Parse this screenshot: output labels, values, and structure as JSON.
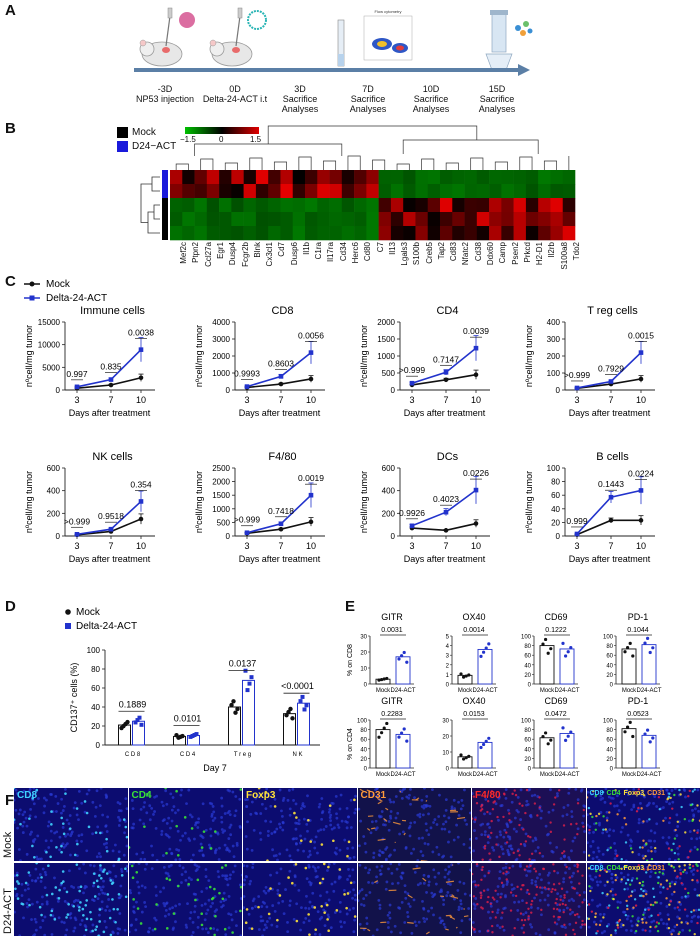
{
  "panels": {
    "A": "A",
    "B": "B",
    "C": "C",
    "D": "D",
    "E": "E",
    "F": "F"
  },
  "timeline": {
    "points": [
      {
        "day": "-3D",
        "event": "NP53 injection"
      },
      {
        "day": "0D",
        "event": "Delta-24-ACT i.t"
      },
      {
        "day": "3D",
        "event": "Sacrifice Analyses"
      },
      {
        "day": "7D",
        "event": "Sacrifice Analyses"
      },
      {
        "day": "10D",
        "event": "Sacrifice Analyses"
      },
      {
        "day": "15D",
        "event": "Sacrifice Analyses"
      }
    ],
    "flow_title": "Flow cytometry"
  },
  "heatmap": {
    "legend": [
      {
        "name": "Mock",
        "color": "#000000"
      },
      {
        "name": "D24−ACT",
        "color": "#1a1adb"
      }
    ],
    "scale": {
      "min": "−1.5",
      "mid": "0",
      "max": "1.5"
    },
    "genes": [
      "Mef2c",
      "Ptpn2",
      "Ccl27a",
      "Egr1",
      "Dusp4",
      "Fcgr2b",
      "Blnk",
      "Cx3cl1",
      "Cd7",
      "Dusp6",
      "Il1b",
      "C1ra",
      "Il17ra",
      "Cd34",
      "Herc6",
      "Cd80",
      "C7",
      "Il13",
      "Lgals3",
      "S100b",
      "Creb5",
      "Tap2",
      "Cd83",
      "Nfatc2",
      "Cd38",
      "Ddx60",
      "Camp",
      "Psen2",
      "Prkcd",
      "H2-D1",
      "Il2rb",
      "S100a8",
      "Tdo2"
    ],
    "row_groups": [
      "D24-ACT",
      "D24-ACT",
      "Mock",
      "Mock",
      "Mock"
    ]
  },
  "section_c": {
    "legend": [
      {
        "name": "Mock",
        "color": "#111111"
      },
      {
        "name": "Delta-24-ACT",
        "color": "#2233cc"
      }
    ],
    "xlabel": "Days after treatment",
    "ylabel": "nºcell/mg tumor",
    "x": [
      "3",
      "7",
      "10"
    ]
  },
  "chart_data": [
    {
      "type": "line",
      "title": "Immune cells",
      "x": [
        3,
        7,
        10
      ],
      "ylim": [
        0,
        15000
      ],
      "yticks": [
        "0",
        "5000",
        "10000",
        "15000"
      ],
      "series": [
        {
          "name": "Mock",
          "values": [
            400,
            1100,
            2700
          ]
        },
        {
          "name": "Delta-24-ACT",
          "values": [
            700,
            2300,
            8900
          ]
        }
      ],
      "pvalues": [
        "0.997",
        "0.835",
        "0.0038"
      ]
    },
    {
      "type": "line",
      "title": "CD8",
      "x": [
        3,
        7,
        10
      ],
      "ylim": [
        0,
        4000
      ],
      "yticks": [
        "0",
        "1000",
        "2000",
        "3000",
        "4000"
      ],
      "series": [
        {
          "name": "Mock",
          "values": [
            150,
            350,
            650
          ]
        },
        {
          "name": "Delta-24-ACT",
          "values": [
            200,
            800,
            2200
          ]
        }
      ],
      "pvalues": [
        "0.9993",
        "0.8603",
        "0.0056"
      ]
    },
    {
      "type": "line",
      "title": "CD4",
      "x": [
        3,
        7,
        10
      ],
      "ylim": [
        0,
        2000
      ],
      "yticks": [
        "0",
        "500",
        "1000",
        "1500",
        "2000"
      ],
      "series": [
        {
          "name": "Mock",
          "values": [
            150,
            300,
            450
          ]
        },
        {
          "name": "Delta-24-ACT",
          "values": [
            200,
            520,
            1230
          ]
        }
      ],
      "pvalues": [
        ">0.999",
        "0.7147",
        "0.0039"
      ]
    },
    {
      "type": "line",
      "title": "T reg cells",
      "x": [
        3,
        7,
        10
      ],
      "ylim": [
        0,
        400
      ],
      "yticks": [
        "0",
        "100",
        "200",
        "300",
        "400"
      ],
      "series": [
        {
          "name": "Mock",
          "values": [
            10,
            35,
            65
          ]
        },
        {
          "name": "Delta-24-ACT",
          "values": [
            12,
            50,
            220
          ]
        }
      ],
      "pvalues": [
        ">0.999",
        "0.7929",
        "0.0015"
      ]
    },
    {
      "type": "line",
      "title": "NK cells",
      "x": [
        3,
        7,
        10
      ],
      "ylim": [
        0,
        600
      ],
      "yticks": [
        "0",
        "200",
        "400",
        "600"
      ],
      "series": [
        {
          "name": "Mock",
          "values": [
            10,
            40,
            150
          ]
        },
        {
          "name": "Delta-24-ACT",
          "values": [
            15,
            60,
            305
          ]
        }
      ],
      "pvalues": [
        ">0.999",
        "0.9518",
        "0.354"
      ]
    },
    {
      "type": "line",
      "title": "F4/80",
      "x": [
        3,
        7,
        10
      ],
      "ylim": [
        0,
        2500
      ],
      "yticks": [
        "0",
        "500",
        "1000",
        "1500",
        "2000",
        "2500"
      ],
      "series": [
        {
          "name": "Mock",
          "values": [
            100,
            250,
            520
          ]
        },
        {
          "name": "Delta-24-ACT",
          "values": [
            120,
            450,
            1500
          ]
        }
      ],
      "pvalues": [
        ">0.999",
        "0.7418",
        "0.0019"
      ]
    },
    {
      "type": "line",
      "title": "DCs",
      "x": [
        3,
        7,
        10
      ],
      "ylim": [
        0,
        600
      ],
      "yticks": [
        "0",
        "200",
        "400",
        "600"
      ],
      "series": [
        {
          "name": "Mock",
          "values": [
            70,
            50,
            110
          ]
        },
        {
          "name": "Delta-24-ACT",
          "values": [
            90,
            210,
            405
          ]
        }
      ],
      "pvalues": [
        "0.9926",
        "0.4023",
        "0.0226"
      ]
    },
    {
      "type": "line",
      "title": "B cells",
      "x": [
        3,
        7,
        10
      ],
      "ylim": [
        0,
        100
      ],
      "yticks": [
        "0",
        "20",
        "40",
        "60",
        "80",
        "100"
      ],
      "series": [
        {
          "name": "Mock",
          "values": [
            2,
            23,
            23
          ]
        },
        {
          "name": "Delta-24-ACT",
          "values": [
            3,
            57,
            67
          ]
        }
      ],
      "pvalues": [
        "0.999",
        "0.1443",
        "0.0224"
      ]
    },
    {
      "type": "bar",
      "title": "",
      "ylabel": "CD137⁺ cells (%)",
      "xlabel": "Day 7",
      "categories": [
        "C D 8",
        "C D 4",
        "T r e g",
        "N K"
      ],
      "ylim": [
        0,
        100
      ],
      "yticks": [
        "0",
        "20",
        "40",
        "60",
        "80",
        "100"
      ],
      "series": [
        {
          "name": "Mock",
          "values": [
            21,
            9,
            40,
            33
          ]
        },
        {
          "name": "Delta-24-ACT",
          "values": [
            25,
            10,
            68,
            44
          ]
        }
      ],
      "pvalues": [
        "0.1889",
        "0.0101",
        "0.0137",
        "<0.0001"
      ]
    },
    {
      "type": "bar",
      "title": "GITR",
      "ylabel": "% on CD8",
      "categories": [
        "Mock",
        "D24-ACT"
      ],
      "ylim": [
        0,
        30
      ],
      "yticks": [
        "0",
        "10",
        "20",
        "30"
      ],
      "values": [
        3,
        17
      ],
      "pvalue": "0.0031"
    },
    {
      "type": "bar",
      "title": "OX40",
      "categories": [
        "Mock",
        "D24-ACT"
      ],
      "ylim": [
        0,
        5
      ],
      "yticks": [
        "0",
        "1",
        "2",
        "3",
        "4",
        "5"
      ],
      "values": [
        0.9,
        3.6
      ],
      "pvalue": "0.0014"
    },
    {
      "type": "bar",
      "title": "CD69",
      "categories": [
        "Mock",
        "D24-ACT"
      ],
      "ylim": [
        0,
        100
      ],
      "yticks": [
        "0",
        "20",
        "40",
        "60",
        "80",
        "100"
      ],
      "values": [
        80,
        73
      ],
      "pvalue": "0.1222"
    },
    {
      "type": "bar",
      "title": "PD-1",
      "categories": [
        "Mock",
        "D24-ACT"
      ],
      "ylim": [
        0,
        100
      ],
      "yticks": [
        "0",
        "20",
        "40",
        "60",
        "80",
        "100"
      ],
      "values": [
        73,
        82
      ],
      "pvalue": "0.1044"
    },
    {
      "type": "bar",
      "title": "GITR",
      "ylabel": "% on CD4",
      "categories": [
        "Mock",
        "D24-ACT"
      ],
      "ylim": [
        0,
        100
      ],
      "yticks": [
        "0",
        "20",
        "40",
        "60",
        "80",
        "100"
      ],
      "values": [
        80,
        70
      ],
      "pvalue": "0.2283"
    },
    {
      "type": "bar",
      "title": "OX40",
      "categories": [
        "Mock",
        "D24-ACT"
      ],
      "ylim": [
        0,
        30
      ],
      "yticks": [
        "0",
        "10",
        "20",
        "30"
      ],
      "values": [
        7,
        16
      ],
      "pvalue": "0.0153"
    },
    {
      "type": "bar",
      "title": "CD69",
      "categories": [
        "Mock",
        "D24-ACT"
      ],
      "ylim": [
        0,
        100
      ],
      "yticks": [
        "0",
        "20",
        "40",
        "60",
        "80",
        "100"
      ],
      "values": [
        63,
        72
      ],
      "pvalue": "0.0472"
    },
    {
      "type": "bar",
      "title": "PD-1",
      "categories": [
        "Mock",
        "D24-ACT"
      ],
      "ylim": [
        0,
        100
      ],
      "yticks": [
        "0",
        "20",
        "40",
        "60",
        "80",
        "100"
      ],
      "values": [
        82,
        68
      ],
      "pvalue": "0.0523"
    }
  ],
  "section_d": {
    "legend": [
      {
        "name": "Mock",
        "color": "#111111"
      },
      {
        "name": "Delta-24-ACT",
        "color": "#2233cc"
      }
    ]
  },
  "section_f": {
    "row_labels": [
      "Mock",
      "D24-ACT"
    ],
    "channels": [
      {
        "label": "CD8",
        "color": "#3fd1ff"
      },
      {
        "label": "CD4",
        "color": "#39e039"
      },
      {
        "label": "Foxp3",
        "color": "#ffe23a"
      },
      {
        "label": "CD31",
        "color": "#ff9a3c"
      },
      {
        "label": "F4/80",
        "color": "#ff2a2a"
      }
    ],
    "merge_labels": [
      {
        "label": "CD8",
        "color": "#3fd1ff"
      },
      {
        "label": "CD4",
        "color": "#39e039"
      },
      {
        "label": "Foxp3",
        "color": "#ffe23a"
      },
      {
        "label": "CD31",
        "color": "#ff9a3c"
      }
    ]
  }
}
